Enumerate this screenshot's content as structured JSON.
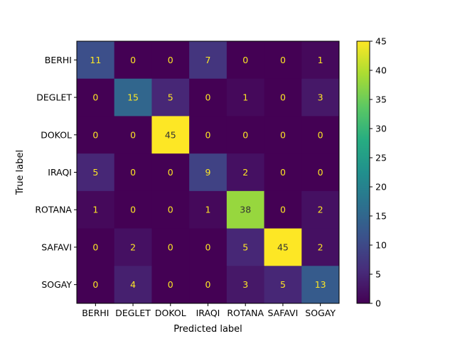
{
  "chart_data": {
    "type": "heatmap",
    "title": "",
    "xlabel": "Predicted label",
    "ylabel": "True label",
    "x_categories": [
      "BERHI",
      "DEGLET",
      "DOKOL",
      "IRAQI",
      "ROTANA",
      "SAFAVI",
      "SOGAY"
    ],
    "y_categories": [
      "BERHI",
      "DEGLET",
      "DOKOL",
      "IRAQI",
      "ROTANA",
      "SAFAVI",
      "SOGAY"
    ],
    "values": [
      [
        11,
        0,
        0,
        7,
        0,
        0,
        1
      ],
      [
        0,
        15,
        5,
        0,
        1,
        0,
        3
      ],
      [
        0,
        0,
        45,
        0,
        0,
        0,
        0
      ],
      [
        5,
        0,
        0,
        9,
        2,
        0,
        0
      ],
      [
        1,
        0,
        0,
        1,
        38,
        0,
        2
      ],
      [
        0,
        2,
        0,
        0,
        5,
        45,
        2
      ],
      [
        0,
        4,
        0,
        0,
        3,
        5,
        13
      ]
    ],
    "colormap": "viridis",
    "vmin": 0,
    "vmax": 45,
    "colorbar_ticks": [
      0,
      5,
      10,
      15,
      20,
      25,
      30,
      35,
      40,
      45
    ],
    "grid": false,
    "legend": "colorbar-right"
  }
}
